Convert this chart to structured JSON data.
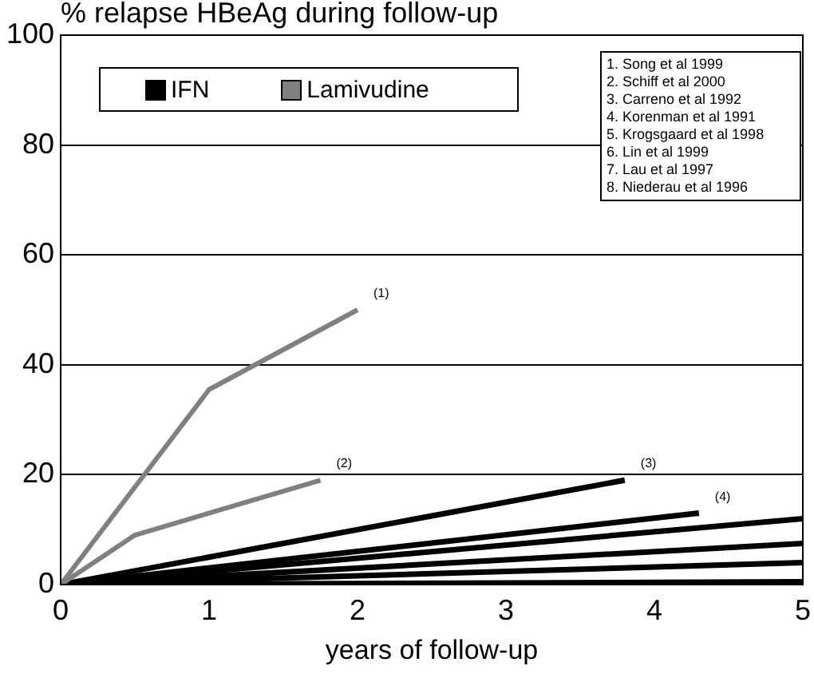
{
  "chart_data": {
    "type": "line",
    "title": "% relapse HBeAg during follow-up",
    "xlabel": "years of follow-up",
    "xlim": [
      0,
      5
    ],
    "xticks": [
      0,
      1,
      2,
      3,
      4,
      5
    ],
    "ylim": [
      0,
      100
    ],
    "yticks": [
      0,
      20,
      40,
      60,
      80,
      100
    ],
    "grid": "y",
    "legend": "top left",
    "marker": "none",
    "line_style": "solid",
    "series": [
      {
        "name": "Lamivudine",
        "color": "#808080",
        "x": [
          0,
          1,
          2
        ],
        "values": [
          0,
          35.5,
          50
        ]
      },
      {
        "color": "#808080",
        "x": [
          0,
          0.5,
          1.75
        ],
        "values": [
          0,
          9,
          19
        ]
      },
      {
        "name": "IFN",
        "color": "#000000",
        "x": [
          0,
          3.8
        ],
        "values": [
          0,
          19
        ]
      },
      {
        "color": "#000000",
        "x": [
          0,
          4.3
        ],
        "values": [
          0,
          13
        ]
      },
      {
        "color": "#000000",
        "x": [
          0,
          5
        ],
        "values": [
          0,
          12
        ]
      },
      {
        "color": "#000000",
        "x": [
          0,
          5
        ],
        "values": [
          0,
          7.5
        ]
      },
      {
        "color": "#000000",
        "x": [
          0,
          5
        ],
        "values": [
          0,
          4
        ]
      },
      {
        "color": "#000000",
        "x": [
          0,
          5
        ],
        "values": [
          0,
          0.5
        ]
      }
    ],
    "annotations": [
      {
        "text": "(1)",
        "x": 2,
        "y": 50
      },
      {
        "text": "(2)",
        "x": 1.75,
        "y": 19
      },
      {
        "text": "(3)",
        "x": 3.8,
        "y": 19
      },
      {
        "text": "(4)",
        "x": 4.3,
        "y": 13
      },
      "1. Song et al 1999",
      "2. Schiff et al 2000",
      "3. Carreno et al 1992",
      "4. Korenman et al 1991",
      "5. Krogsgaard et al 1998",
      "6. Lin et al 1999",
      "7. Lau et al 1997",
      "8. Niederau et al 1996"
    ]
  }
}
